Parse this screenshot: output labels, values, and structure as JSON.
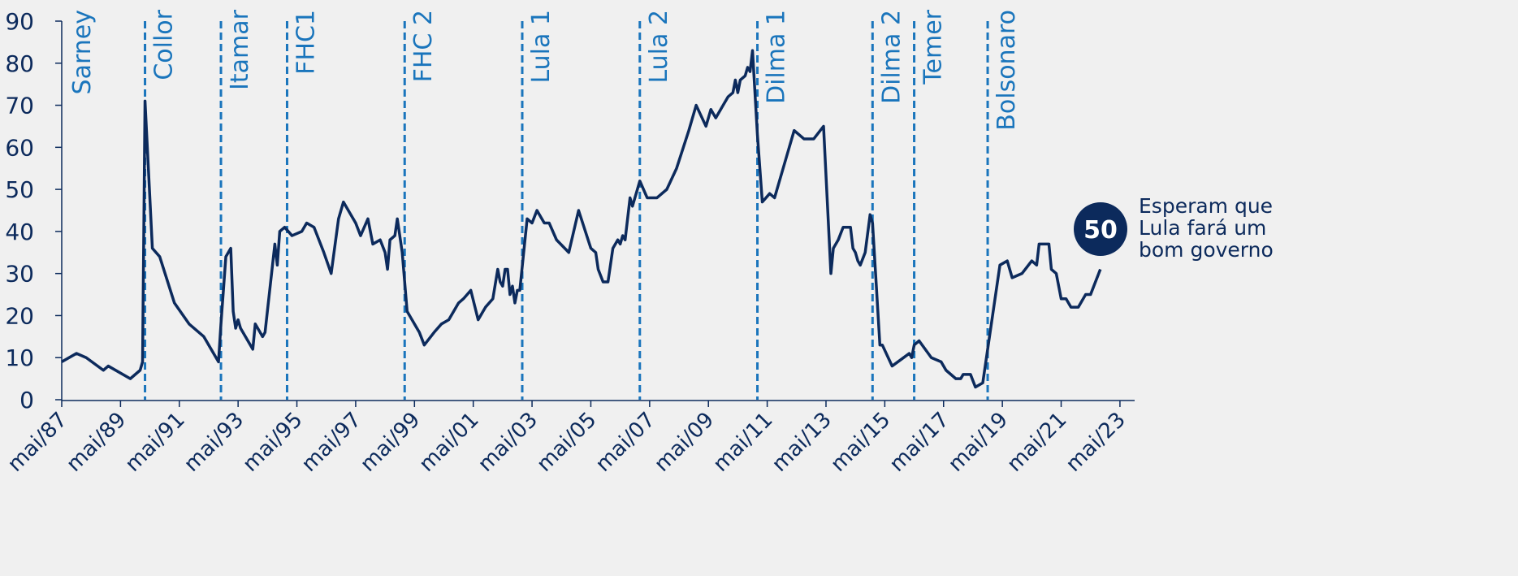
{
  "chart_data": {
    "type": "line",
    "x": [
      "1987-05",
      "1987-11",
      "1988-03",
      "1988-10",
      "1988-12",
      "1989-09",
      "1990-01",
      "1990-02",
      "1990-03",
      "1990-06",
      "1990-09",
      "1991-03",
      "1991-09",
      "1992-03",
      "1992-09",
      "1992-10",
      "1992-12",
      "1993-02",
      "1993-03",
      "1993-04",
      "1993-05",
      "1993-06",
      "1993-11",
      "1993-12",
      "1994-03",
      "1994-04",
      "1994-08",
      "1994-09",
      "1994-10",
      "1994-12",
      "1995-03",
      "1995-07",
      "1995-09",
      "1995-12",
      "1996-04",
      "1996-07",
      "1996-10",
      "1996-12",
      "1997-05",
      "1997-07",
      "1997-10",
      "1997-12",
      "1998-03",
      "1998-05",
      "1998-06",
      "1998-07",
      "1998-09",
      "1998-10",
      "1998-12",
      "1999-02",
      "1999-07",
      "1999-09",
      "2000-01",
      "2000-04",
      "2000-07",
      "2000-11",
      "2001-01",
      "2001-04",
      "2001-07",
      "2001-10",
      "2002-01",
      "2002-03",
      "2002-04",
      "2002-05",
      "2002-06",
      "2002-07",
      "2002-08",
      "2002-09",
      "2002-10",
      "2002-11",
      "2002-12",
      "2003-03",
      "2003-05",
      "2003-07",
      "2003-10",
      "2003-12",
      "2004-03",
      "2004-08",
      "2004-12",
      "2005-05",
      "2005-07",
      "2005-08",
      "2005-10",
      "2005-12",
      "2006-02",
      "2006-04",
      "2006-05",
      "2006-06",
      "2006-07",
      "2006-09",
      "2006-10",
      "2006-12",
      "2007-01",
      "2007-04",
      "2007-08",
      "2007-12",
      "2008-04",
      "2008-09",
      "2008-12",
      "2009-04",
      "2009-06",
      "2009-08",
      "2010-01",
      "2010-03",
      "2010-04",
      "2010-05",
      "2010-06",
      "2010-08",
      "2010-09",
      "2010-10",
      "2010-11",
      "2011-01",
      "2011-03",
      "2011-06",
      "2011-08",
      "2012-01",
      "2012-04",
      "2012-08",
      "2012-12",
      "2013-04",
      "2013-07",
      "2013-08",
      "2013-10",
      "2013-12",
      "2014-03",
      "2014-04",
      "2014-05",
      "2014-06",
      "2014-07",
      "2014-09",
      "2014-11",
      "2014-12",
      "2015-03",
      "2015-04",
      "2015-08",
      "2016-03",
      "2016-04",
      "2016-05",
      "2016-07",
      "2016-12",
      "2017-04",
      "2017-06",
      "2017-10",
      "2017-12",
      "2018-01",
      "2018-04",
      "2018-06",
      "2018-09",
      "2019-04",
      "2019-07",
      "2019-09",
      "2020-01",
      "2020-05",
      "2020-07",
      "2020-08",
      "2020-12",
      "2021-01",
      "2021-03",
      "2021-05",
      "2021-07",
      "2021-09",
      "2021-12",
      "2022-03",
      "2022-05",
      "2022-07",
      "2022-09"
    ],
    "series": [
      {
        "color": "#0c2a5c",
        "values": [
          9,
          11,
          10,
          7,
          8,
          5,
          7,
          9,
          71,
          36,
          34,
          23,
          18,
          15,
          9,
          18,
          34,
          36,
          21,
          17,
          19,
          17,
          12,
          18,
          15,
          16,
          37,
          32,
          40,
          41,
          39,
          40,
          42,
          41,
          35,
          30,
          43,
          47,
          42,
          39,
          43,
          37,
          38,
          35,
          31,
          38,
          39,
          43,
          35,
          21,
          16,
          13,
          16,
          18,
          19,
          23,
          24,
          26,
          19,
          22,
          24,
          31,
          28,
          27,
          31,
          31,
          25,
          27,
          23,
          26,
          26,
          43,
          42,
          45,
          42,
          42,
          38,
          35,
          45,
          36,
          35,
          31,
          28,
          28,
          36,
          38,
          37,
          39,
          38,
          48,
          46,
          50,
          52,
          48,
          48,
          50,
          55,
          64,
          70,
          65,
          69,
          67,
          72,
          73,
          76,
          73,
          76,
          77,
          79,
          78,
          83,
          63,
          47,
          49,
          48,
          58,
          64,
          62,
          62,
          65,
          30,
          36,
          38,
          41,
          41,
          36,
          35,
          33,
          32,
          35,
          44,
          42,
          13,
          13,
          8,
          11,
          10,
          13,
          14,
          10,
          9,
          7,
          5,
          5,
          6,
          6,
          3,
          4,
          32,
          33,
          29,
          30,
          33,
          32,
          37,
          37,
          31,
          30,
          24,
          24,
          22,
          22,
          25,
          25,
          28,
          31
        ]
      }
    ],
    "xlim": [
      "1987-05",
      "2023-11"
    ],
    "xticks": [
      {
        "value": "1987-05",
        "label": "mai/87"
      },
      {
        "value": "1989-05",
        "label": "mai/89"
      },
      {
        "value": "1991-05",
        "label": "mai/91"
      },
      {
        "value": "1993-05",
        "label": "mai/93"
      },
      {
        "value": "1995-05",
        "label": "mai/95"
      },
      {
        "value": "1997-05",
        "label": "mai/97"
      },
      {
        "value": "1999-05",
        "label": "mai/99"
      },
      {
        "value": "2001-05",
        "label": "mai/01"
      },
      {
        "value": "2003-05",
        "label": "mai/03"
      },
      {
        "value": "2005-05",
        "label": "mai/05"
      },
      {
        "value": "2007-05",
        "label": "mai/07"
      },
      {
        "value": "2009-05",
        "label": "mai/09"
      },
      {
        "value": "2011-05",
        "label": "mai/11"
      },
      {
        "value": "2013-05",
        "label": "mai/13"
      },
      {
        "value": "2015-05",
        "label": "mai/15"
      },
      {
        "value": "2017-05",
        "label": "mai/17"
      },
      {
        "value": "2019-05",
        "label": "mai/19"
      },
      {
        "value": "2021-05",
        "label": "mai/21"
      },
      {
        "value": "2023-05",
        "label": "mai/23"
      }
    ],
    "ylim": [
      0,
      90
    ],
    "yticks": [
      0,
      10,
      20,
      30,
      40,
      50,
      60,
      70,
      80,
      90
    ],
    "annotations": [
      {
        "x": "1987-05",
        "text": "Sarney"
      },
      {
        "x": "1990-03",
        "text": "Collor"
      },
      {
        "x": "1992-10",
        "text": "Itamar"
      },
      {
        "x": "1995-01",
        "text": "FHC1"
      },
      {
        "x": "1999-01",
        "text": "FHC 2"
      },
      {
        "x": "2003-01",
        "text": "Lula 1"
      },
      {
        "x": "2007-01",
        "text": "Lula 2"
      },
      {
        "x": "2011-01",
        "text": "Dilma 1"
      },
      {
        "x": "2014-12",
        "text": "Dilma 2"
      },
      {
        "x": "2016-05",
        "text": "Temer"
      },
      {
        "x": "2018-11",
        "text": "Bolsonaro"
      }
    ],
    "annotation_color": "#1a75bc",
    "callout": {
      "label": "50",
      "lines": [
        "Esperam que",
        "Lula fará um",
        "bom governo"
      ]
    }
  }
}
